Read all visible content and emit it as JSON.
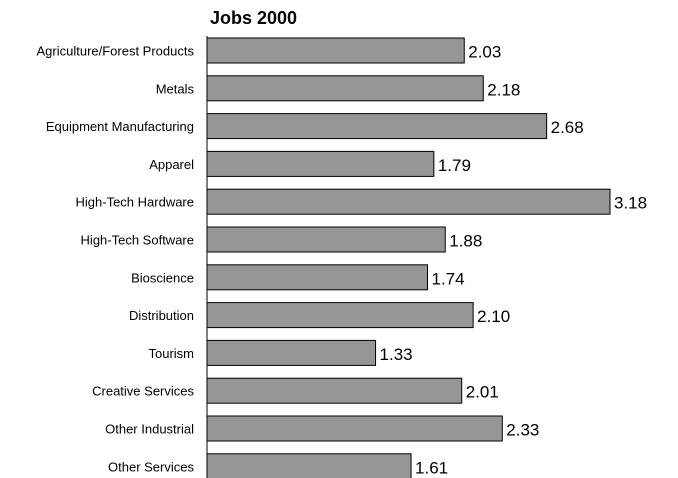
{
  "chart_data": {
    "type": "bar",
    "orientation": "horizontal",
    "title": "Jobs 2000",
    "categories": [
      "Agriculture/Forest Products",
      "Metals",
      "Equipment Manufacturing",
      "Apparel",
      "High-Tech Hardware",
      "High-Tech Software",
      "Bioscience",
      "Distribution",
      "Tourism",
      "Creative Services",
      "Other Industrial",
      "Other Services"
    ],
    "values": [
      2.03,
      2.18,
      2.68,
      1.79,
      3.18,
      1.88,
      1.74,
      2.1,
      1.33,
      2.01,
      2.33,
      1.61
    ],
    "value_labels": [
      "2.03",
      "2.18",
      "2.68",
      "1.79",
      "3.18",
      "1.88",
      "1.74",
      "2.10",
      "1.33",
      "2.01",
      "2.33",
      "1.61"
    ],
    "xlim": [
      0,
      3.18
    ],
    "grid": false,
    "bar_color": "#969696"
  }
}
